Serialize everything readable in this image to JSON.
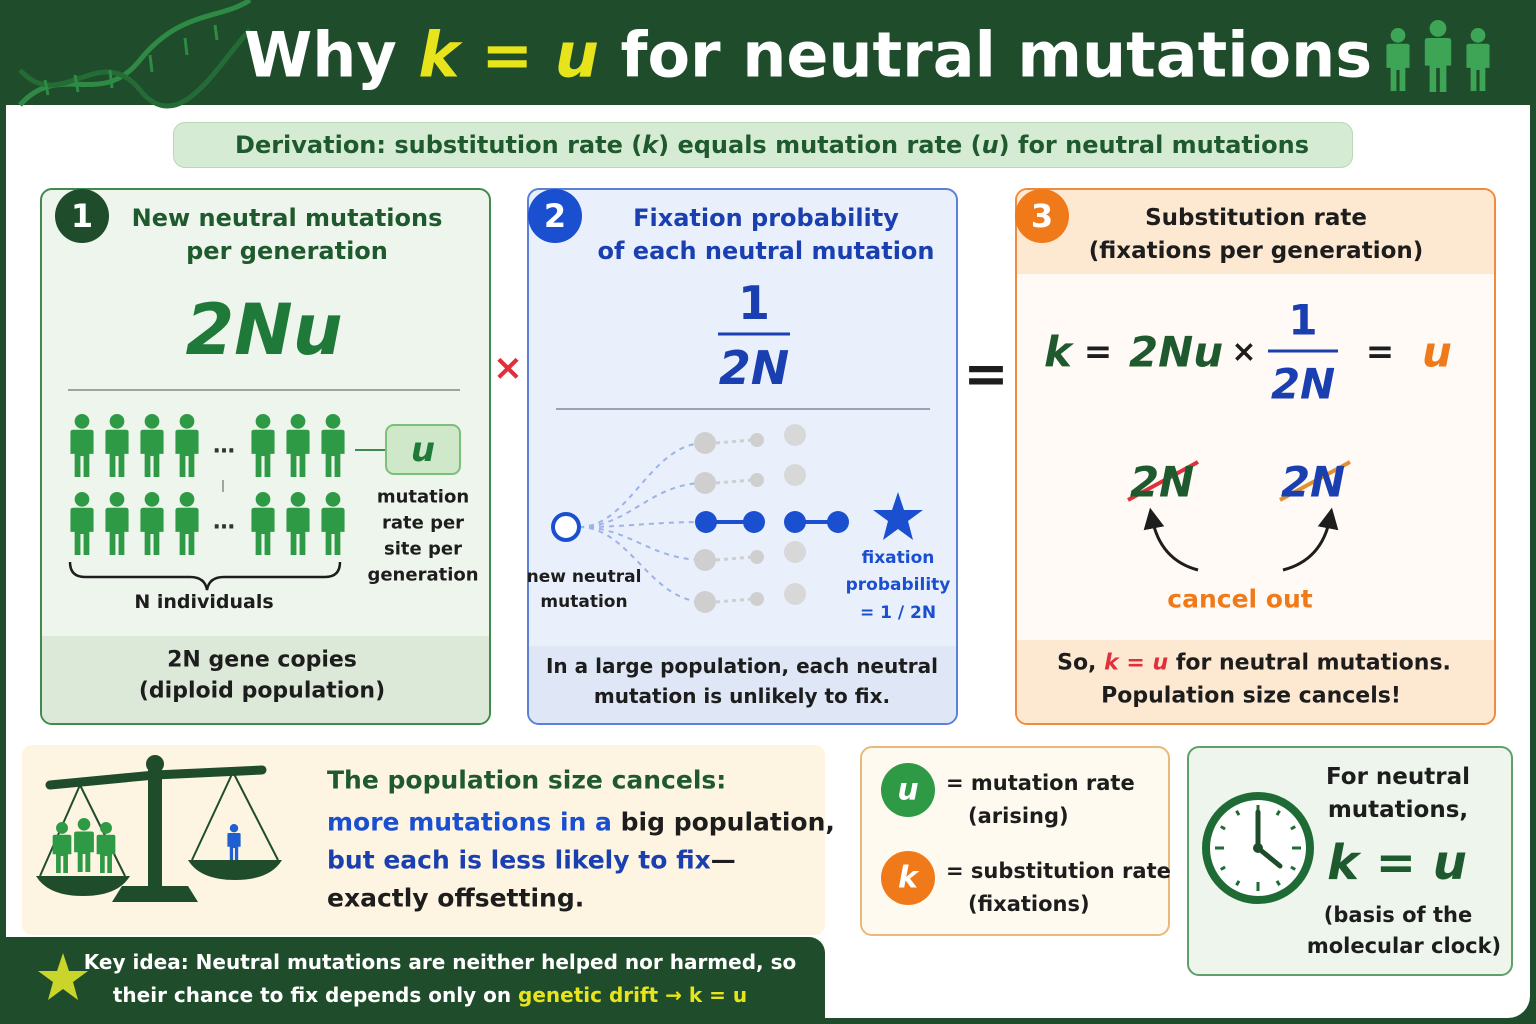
{
  "header": {
    "title": [
      "Why",
      "k = u",
      "for neutral mutations"
    ]
  },
  "subtitle": [
    "Derivation: substitution rate (",
    "k",
    ") equals mutation rate (",
    "u",
    ") for neutral mutations"
  ],
  "panel1": {
    "number": "1",
    "heading": [
      "New neutral mutations",
      "per generation"
    ],
    "formula": "2Nu",
    "ellipsis": "…",
    "rate_symbol": "u",
    "rate_caption": [
      "mutation",
      "rate per",
      "site per",
      "generation"
    ],
    "group_label": "N individuals",
    "footer": [
      "2N gene copies",
      "(diploid population)"
    ]
  },
  "operators": {
    "times": "×",
    "equals": "="
  },
  "panel2": {
    "number": "2",
    "heading": [
      "Fixation probability",
      "of each neutral mutation"
    ],
    "fraction": {
      "numerator": "1",
      "denominator": "2N"
    },
    "start_label": [
      "new neutral",
      "mutation"
    ],
    "end_label": [
      "fixation",
      "probability",
      "= 1 / 2N"
    ],
    "footer": [
      "In a large population, each neutral",
      "mutation is unlikely to fix."
    ]
  },
  "panel3": {
    "number": "3",
    "heading": [
      "Substitution rate",
      "(fixations per generation)"
    ],
    "equation": [
      "k",
      "=",
      "2Nu",
      "×",
      "1",
      "2N",
      "=",
      "u"
    ],
    "cancelled": [
      "2N",
      "2N"
    ],
    "cancel_label": "cancel out",
    "footer": {
      "line1": [
        "So,",
        "k = u",
        "for neutral mutations."
      ],
      "line2": "Population size cancels!"
    }
  },
  "balance": {
    "heading": "The population size cancels:",
    "line1": [
      "more mutations in a",
      "big population,"
    ],
    "line2": [
      "but each is less likely to fix",
      "—"
    ],
    "line3": "exactly offsetting."
  },
  "key_idea": {
    "line1": "Key idea: Neutral mutations are neither helped nor harmed, so",
    "line2": [
      "their chance to fix depends only on",
      "genetic drift → k = u"
    ]
  },
  "legend": [
    {
      "symbol": "u",
      "text": [
        "= mutation rate",
        "(arising)"
      ]
    },
    {
      "symbol": "k",
      "text": [
        "= substitution rate",
        "(fixations)"
      ]
    }
  ],
  "clock_note": {
    "lines": [
      "For neutral",
      "mutations,"
    ],
    "formula": "k = u",
    "caption": [
      "(basis of the",
      "molecular clock)"
    ]
  }
}
